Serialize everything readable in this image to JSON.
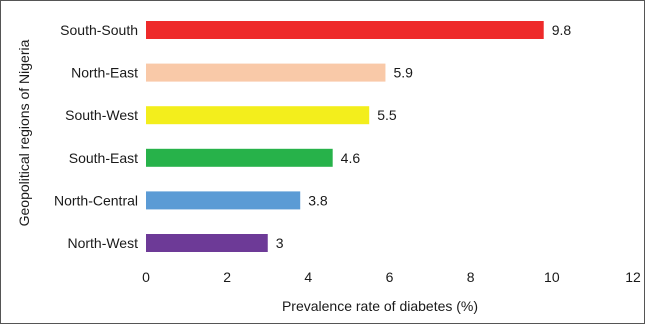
{
  "chart_data": {
    "type": "bar",
    "orientation": "horizontal",
    "title": "",
    "xlabel": "Prevalence rate of diabetes (%)",
    "ylabel": "Geopolitical regions of Nigeria",
    "xlim": [
      0,
      12
    ],
    "x_ticks": [
      0,
      2,
      4,
      6,
      8,
      10,
      12
    ],
    "categories": [
      "South-South",
      "North-East",
      "South-West",
      "South-East",
      "North-Central",
      "North-West"
    ],
    "values": [
      9.8,
      5.9,
      5.5,
      4.6,
      3.8,
      3
    ],
    "value_labels": [
      "9.8",
      "5.9",
      "5.5",
      "4.6",
      "3.8",
      "3"
    ],
    "colors": [
      "#ee2a2a",
      "#f9c9a8",
      "#f3ee1c",
      "#27b24a",
      "#5b9bd5",
      "#6d3a97"
    ],
    "grid": false,
    "legend": "none"
  }
}
